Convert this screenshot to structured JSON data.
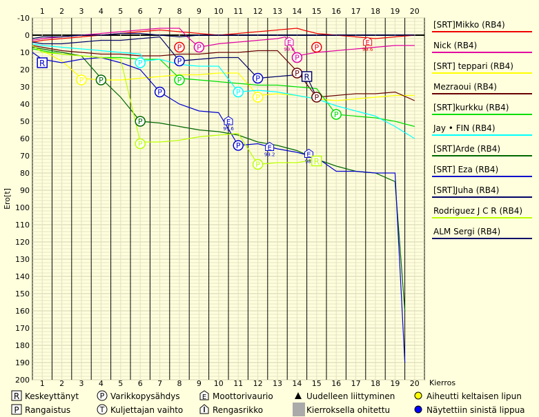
{
  "chart_data": {
    "type": "line",
    "ylabel": "Ero[t]",
    "xlabel": "Kierros",
    "x_ticks": [
      1,
      2,
      3,
      4,
      5,
      6,
      7,
      8,
      9,
      10,
      11,
      12,
      13,
      14,
      15,
      16,
      17,
      18,
      19,
      20
    ],
    "y_ticks": [
      -10,
      0,
      10,
      20,
      30,
      40,
      50,
      60,
      70,
      80,
      90,
      100,
      110,
      120,
      130,
      140,
      150,
      160,
      170,
      180,
      190,
      200
    ],
    "xlim": [
      0.5,
      20.5
    ],
    "ylim": [
      -10,
      200
    ],
    "series": [
      {
        "name": "[SRT]Mikko (RB4)",
        "color": "#ee0000",
        "values": [
          [
            0.5,
            4
          ],
          [
            1,
            3
          ],
          [
            2,
            2
          ],
          [
            3,
            1
          ],
          [
            4,
            0
          ],
          [
            5,
            -1
          ],
          [
            6,
            -2
          ],
          [
            7,
            -3
          ],
          [
            8,
            -2
          ],
          [
            9,
            -1
          ],
          [
            10,
            0
          ],
          [
            11,
            -1
          ],
          [
            12,
            -2
          ],
          [
            13,
            -3
          ],
          [
            14,
            -4
          ],
          [
            14.3,
            -3
          ],
          [
            15,
            -1
          ],
          [
            16,
            0
          ],
          [
            17,
            1
          ],
          [
            18,
            2
          ],
          [
            19,
            1
          ],
          [
            20,
            0
          ]
        ]
      },
      {
        "name": "Nick (RB4)",
        "color": "#e000a0",
        "values": [
          [
            0.5,
            3
          ],
          [
            1,
            2
          ],
          [
            2,
            1
          ],
          [
            3,
            0
          ],
          [
            4,
            -1
          ],
          [
            5,
            -2
          ],
          [
            6,
            -3
          ],
          [
            7,
            -4
          ],
          [
            8,
            -4
          ],
          [
            8.4,
            1
          ],
          [
            9,
            7
          ],
          [
            10,
            5
          ],
          [
            11,
            4
          ],
          [
            12,
            3
          ],
          [
            13,
            2
          ],
          [
            13.4,
            1
          ],
          [
            14,
            12
          ],
          [
            15,
            10
          ],
          [
            16,
            9
          ],
          [
            17,
            8
          ],
          [
            18,
            7
          ],
          [
            19,
            6
          ],
          [
            20,
            6
          ]
        ]
      },
      {
        "name": "[SRT] teppari (RB4)",
        "color": "#ffff00",
        "values": [
          [
            0.5,
            6
          ],
          [
            1,
            9
          ],
          [
            2,
            15
          ],
          [
            3,
            25
          ],
          [
            4,
            26
          ],
          [
            5,
            26
          ],
          [
            6,
            25
          ],
          [
            7,
            24
          ],
          [
            8,
            23
          ],
          [
            9,
            23
          ],
          [
            10,
            22
          ],
          [
            11,
            22
          ],
          [
            12,
            35
          ],
          [
            13,
            34
          ],
          [
            14,
            35
          ],
          [
            15,
            37
          ],
          [
            16,
            38
          ],
          [
            17,
            37
          ],
          [
            18,
            36
          ],
          [
            19,
            35
          ],
          [
            20,
            35
          ]
        ]
      },
      {
        "name": "Mezraoui (RB4)",
        "color": "#660000",
        "values": [
          [
            0.5,
            6
          ],
          [
            1,
            7
          ],
          [
            2,
            9
          ],
          [
            3,
            10
          ],
          [
            4,
            11
          ],
          [
            5,
            11
          ],
          [
            6,
            12
          ],
          [
            7,
            12
          ],
          [
            8,
            11
          ],
          [
            9,
            11
          ],
          [
            10,
            10
          ],
          [
            11,
            10
          ],
          [
            12,
            9
          ],
          [
            13,
            9
          ],
          [
            14,
            21
          ],
          [
            15,
            36
          ],
          [
            16,
            35
          ],
          [
            17,
            34
          ],
          [
            18,
            34
          ],
          [
            19,
            33
          ],
          [
            20,
            38
          ]
        ]
      },
      {
        "name": "[SRT]kurkku (RB4)",
        "color": "#00dd00",
        "values": [
          [
            0.5,
            8
          ],
          [
            1,
            9
          ],
          [
            2,
            11
          ],
          [
            3,
            12
          ],
          [
            4,
            13
          ],
          [
            5,
            13
          ],
          [
            6,
            14
          ],
          [
            7,
            14
          ],
          [
            8,
            25
          ],
          [
            9,
            26
          ],
          [
            10,
            27
          ],
          [
            11,
            28
          ],
          [
            12,
            29
          ],
          [
            13,
            29
          ],
          [
            14,
            30
          ],
          [
            15,
            31
          ],
          [
            16,
            46
          ],
          [
            17,
            47
          ],
          [
            18,
            48
          ],
          [
            19,
            50
          ],
          [
            20,
            53
          ]
        ]
      },
      {
        "name": "Jay • FIN (RB4)",
        "color": "#00ffff",
        "values": [
          [
            0.5,
            5
          ],
          [
            1,
            6
          ],
          [
            2,
            7
          ],
          [
            3,
            8
          ],
          [
            4,
            9
          ],
          [
            5,
            10
          ],
          [
            6,
            11
          ],
          [
            6.2,
            15
          ],
          [
            7,
            14
          ],
          [
            8,
            17
          ],
          [
            9,
            18
          ],
          [
            10,
            18
          ],
          [
            11,
            33
          ],
          [
            12,
            32
          ],
          [
            13,
            33
          ],
          [
            14,
            35
          ],
          [
            15,
            37
          ],
          [
            16,
            41
          ],
          [
            17,
            44
          ],
          [
            18,
            47
          ],
          [
            19,
            53
          ],
          [
            20,
            60
          ]
        ]
      },
      {
        "name": "[SRT]Arde (RB4)",
        "color": "#006600",
        "values": [
          [
            0.5,
            7
          ],
          [
            1,
            8
          ],
          [
            2,
            10
          ],
          [
            3,
            12
          ],
          [
            4,
            25
          ],
          [
            5,
            36
          ],
          [
            6,
            50
          ],
          [
            7,
            51
          ],
          [
            8,
            53
          ],
          [
            9,
            55
          ],
          [
            10,
            56
          ],
          [
            11,
            58
          ],
          [
            12,
            62
          ],
          [
            13,
            64
          ],
          [
            14,
            67
          ],
          [
            15,
            72
          ],
          [
            16,
            76
          ],
          [
            17,
            79
          ],
          [
            18,
            80
          ],
          [
            19,
            85
          ],
          [
            19.5,
            160
          ]
        ]
      },
      {
        "name": "[SRT] Eza (RB4)",
        "color": "#0000cc",
        "values": [
          [
            0.5,
            10
          ],
          [
            1,
            14
          ],
          [
            2,
            16
          ],
          [
            3,
            14
          ],
          [
            4,
            13
          ],
          [
            5,
            16
          ],
          [
            6,
            20
          ],
          [
            7,
            33
          ],
          [
            8,
            40
          ],
          [
            9,
            44
          ],
          [
            10,
            45
          ],
          [
            11,
            64
          ],
          [
            12,
            63
          ],
          [
            13,
            66
          ],
          [
            14,
            68
          ],
          [
            15,
            71
          ],
          [
            16,
            79
          ],
          [
            17,
            79
          ],
          [
            18,
            80
          ],
          [
            19,
            80
          ],
          [
            19.5,
            190
          ]
        ]
      },
      {
        "name": "[SRT]Juha (RB4)",
        "color": "#000066",
        "values": [
          [
            0.5,
            4
          ],
          [
            1,
            5
          ],
          [
            2,
            5
          ],
          [
            3,
            4
          ],
          [
            4,
            3
          ],
          [
            5,
            3
          ],
          [
            6,
            2
          ],
          [
            7,
            1
          ],
          [
            8,
            15
          ],
          [
            9,
            14
          ],
          [
            10,
            13
          ],
          [
            11,
            13
          ],
          [
            12,
            25
          ],
          [
            13,
            24
          ],
          [
            14,
            23
          ],
          [
            14.5,
            24
          ],
          [
            15,
            36
          ]
        ]
      },
      {
        "name": "Rodriguez  J C R (RB4)",
        "color": "#bbff00",
        "values": [
          [
            0.5,
            6
          ],
          [
            1,
            10
          ],
          [
            2,
            11
          ],
          [
            3,
            12
          ],
          [
            4,
            13
          ],
          [
            5,
            14
          ],
          [
            6,
            62
          ],
          [
            7,
            62
          ],
          [
            8,
            61
          ],
          [
            9,
            59
          ],
          [
            10,
            58
          ],
          [
            11,
            57
          ],
          [
            12,
            75
          ],
          [
            13,
            74
          ],
          [
            14,
            74
          ],
          [
            14.5,
            73
          ],
          [
            15,
            72
          ]
        ]
      },
      {
        "name": "ALM Sergi (RB4)",
        "color": "#000066",
        "values": [
          [
            0.5,
            2
          ],
          [
            1,
            1
          ],
          [
            2,
            1
          ],
          [
            3,
            0
          ],
          [
            4,
            0
          ],
          [
            5,
            -1
          ],
          [
            6,
            -1
          ],
          [
            7,
            0
          ],
          [
            8,
            1
          ],
          [
            9,
            0
          ],
          [
            10,
            0
          ],
          [
            11,
            0
          ],
          [
            12,
            0
          ],
          [
            13,
            0
          ],
          [
            14,
            0
          ],
          [
            15,
            0
          ],
          [
            16,
            0
          ],
          [
            17,
            0
          ],
          [
            18,
            0
          ],
          [
            19,
            0
          ],
          [
            20,
            0
          ]
        ]
      }
    ],
    "markers": [
      {
        "type": "R",
        "x": 1,
        "y": 16,
        "color": "#0000cc"
      },
      {
        "type": "P",
        "x": 3,
        "y": 26,
        "color": "#ffff00"
      },
      {
        "type": "P",
        "x": 4,
        "y": 26,
        "color": "#006600"
      },
      {
        "type": "P",
        "x": 6,
        "y": 16,
        "color": "#00ffff"
      },
      {
        "type": "P",
        "x": 6,
        "y": 50,
        "color": "#006600"
      },
      {
        "type": "P",
        "x": 6,
        "y": 63,
        "color": "#bbff00"
      },
      {
        "type": "P",
        "x": 7,
        "y": 33,
        "color": "#0000cc"
      },
      {
        "type": "P",
        "x": 8,
        "y": 7,
        "color": "#ee0000"
      },
      {
        "type": "P",
        "x": 8,
        "y": 15,
        "color": "#0000cc"
      },
      {
        "type": "P",
        "x": 8,
        "y": 26,
        "color": "#00dd00"
      },
      {
        "type": "P",
        "x": 9,
        "y": 7,
        "color": "#e000a0"
      },
      {
        "type": "E",
        "x": 10.5,
        "y": 50,
        "color": "#0000cc",
        "label": "99.6"
      },
      {
        "type": "P",
        "x": 11,
        "y": 33,
        "color": "#00ffff"
      },
      {
        "type": "P",
        "x": 11,
        "y": 64,
        "color": "#0000cc"
      },
      {
        "type": "P",
        "x": 12,
        "y": 25,
        "color": "#0000cc"
      },
      {
        "type": "P",
        "x": 12,
        "y": 36,
        "color": "#ffff00"
      },
      {
        "type": "E",
        "x": 12.6,
        "y": 65,
        "color": "#0000cc",
        "label": "99.2"
      },
      {
        "type": "P",
        "x": 12,
        "y": 75,
        "color": "#bbff00"
      },
      {
        "type": "E",
        "x": 13.6,
        "y": 4,
        "color": "#e000a0",
        "label": "99.6"
      },
      {
        "type": "P",
        "x": 14,
        "y": 13,
        "color": "#e000a0"
      },
      {
        "type": "P",
        "x": 14,
        "y": 22,
        "color": "#660000"
      },
      {
        "type": "E",
        "x": 14.6,
        "y": 69,
        "color": "#0000cc",
        "label": "98."
      },
      {
        "type": "R",
        "x": 14.5,
        "y": 24,
        "color": "#000066"
      },
      {
        "type": "P",
        "x": 15,
        "y": 7,
        "color": "#ee0000"
      },
      {
        "type": "P",
        "x": 15,
        "y": 36,
        "color": "#660000"
      },
      {
        "type": "R",
        "x": 15,
        "y": 73,
        "color": "#bbff00"
      },
      {
        "type": "P",
        "x": 16,
        "y": 46,
        "color": "#00dd00"
      },
      {
        "type": "E",
        "x": 17.6,
        "y": 4,
        "color": "#ee0000",
        "label": "99.6"
      }
    ]
  },
  "bottom_legend": [
    {
      "symbol": "R",
      "label": "Keskeyttänyt"
    },
    {
      "symbol": "P-circle",
      "label": "Varikkopysähdys"
    },
    {
      "symbol": "E",
      "label": "Moottorivaurio"
    },
    {
      "symbol": "triangle",
      "label": "Uudelleen liittyminen"
    },
    {
      "symbol": "yellow-dot",
      "label": "Aiheutti keltaisen lipun"
    },
    {
      "symbol": "P",
      "label": "Rangaistus"
    },
    {
      "symbol": "T-circle",
      "label": "Kuljettajan vaihto"
    },
    {
      "symbol": "tyre",
      "label": "Rengasrikko"
    },
    {
      "symbol": "grey-box",
      "label": "Kierroksella ohitettu"
    },
    {
      "symbol": "blue-dot",
      "label": "Näytettiin sinistä lippua"
    }
  ]
}
